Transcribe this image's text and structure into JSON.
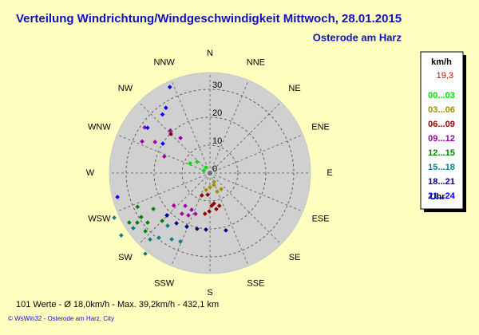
{
  "chart_data": {
    "type": "polar_scatter",
    "title": "Verteilung Windrichtung/Windgeschwindigkeit  Mittwoch, 28.01.2015",
    "subtitle": "Osterode am Harz",
    "legend_title": "km/h",
    "current_value": "19,3",
    "legend_footer": "Uhr",
    "footer": "101 Werte   -   Ø 18,0km/h   -   Max. 39,2km/h   -   432,1 km",
    "credit": "© WsWin32  -  Osterode am Harz, City",
    "directions": [
      "N",
      "NNE",
      "NE",
      "ENE",
      "E",
      "ESE",
      "SE",
      "SSE",
      "S",
      "SSW",
      "SW",
      "WSW",
      "W",
      "WNW",
      "NW",
      "NNW"
    ],
    "rlim": [
      0,
      36
    ],
    "rticks": [
      0,
      10,
      20,
      30
    ],
    "grid": true,
    "series": [
      {
        "name": "00...03",
        "color": "#00e000",
        "x": [
          324,
          296,
          311,
          291
        ],
        "values": [
          2.5,
          7.9,
          6.1,
          2.4
        ]
      },
      {
        "name": "03...06",
        "color": "#a09000",
        "x": [
          180,
          162,
          159,
          193,
          145,
          155
        ],
        "values": [
          5.1,
          4.5,
          7.1,
          6.2,
          7.0,
          3.5
        ]
      },
      {
        "name": "06...09",
        "color": "#900000",
        "x": [
          170,
          177,
          181,
          172.5,
          186,
          164,
          200,
          187,
          315
        ],
        "values": [
          13.1,
          11.7,
          13.7,
          11.0,
          7.8,
          12.2,
          8.5,
          14.7,
          19.8
        ]
      },
      {
        "name": "09...12",
        "color": "#a000a0",
        "x": [
          228,
          214.5,
          206.6,
          217,
          199.5,
          207,
          305,
          295,
          299.5,
          317,
          320,
          290
        ],
        "values": [
          17.4,
          17.7,
          14.7,
          14.7,
          15.5,
          17.0,
          28.5,
          26.8,
          22.6,
          20.8,
          16.4,
          17.4
        ]
      },
      {
        "name": "12...15",
        "color": "#008000",
        "x": [
          245,
          237.4,
          231.5,
          235.7,
          237.6,
          225,
          238.5,
          228
        ],
        "values": [
          28.6,
          29.2,
          28.5,
          31.5,
          24.0,
          24.2,
          33.9,
          31.1
        ]
      },
      {
        "name": "15...18",
        "color": "#008080",
        "x": [
          245,
          234.9,
          218.7,
          222,
          218.3,
          218.8,
          210,
          234.3,
          203.3
        ],
        "values": [
          37.8,
          38.8,
          37.0,
          32.0,
          29.5,
          24.2,
          27.4,
          33.8,
          26.7
        ]
      },
      {
        "name": "18...21",
        "color": "#000080",
        "x": [
          193,
          184,
          164.5,
          203.4,
          225.5,
          213.7
        ],
        "values": [
          20.5,
          20.3,
          21.3,
          20.9,
          21.6,
          21.6
        ]
      },
      {
        "name": "21...24",
        "color": "#0000ff",
        "x": [
          335,
          326,
          321,
          306,
          302,
          255.5
        ],
        "values": [
          34.0,
          28.2,
          27.0,
          27.6,
          19.9,
          34.2
        ]
      }
    ]
  }
}
